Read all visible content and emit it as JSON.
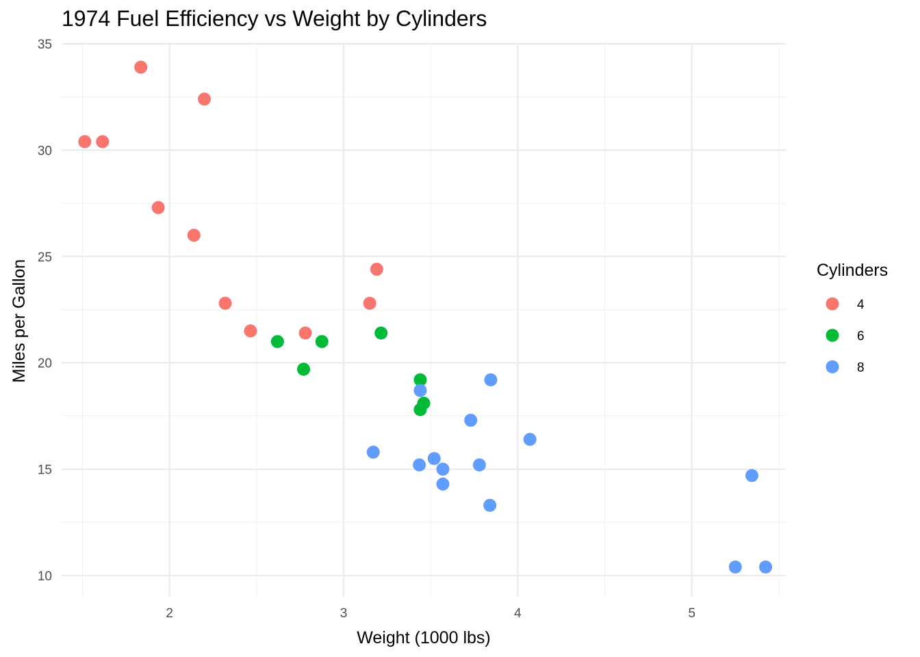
{
  "chart_data": {
    "type": "scatter",
    "title": "1974 Fuel Efficiency vs Weight by Cylinders",
    "xlabel": "Weight (1000 lbs)",
    "ylabel": "Miles per Gallon",
    "xlim": [
      1.38,
      5.54
    ],
    "ylim": [
      9.0,
      35.0
    ],
    "x_ticks": [
      2,
      3,
      4,
      5
    ],
    "x_tick_labels": [
      "2",
      "3",
      "4",
      "5"
    ],
    "y_ticks": [
      10,
      15,
      20,
      25,
      30,
      35
    ],
    "y_tick_labels": [
      "10",
      "15",
      "20",
      "25",
      "30",
      "35"
    ],
    "grid": true,
    "legend": {
      "title": "Cylinders",
      "placement": "right",
      "entries": [
        {
          "label": "4",
          "color": "#F8766D"
        },
        {
          "label": "6",
          "color": "#00BA38"
        },
        {
          "label": "8",
          "color": "#619CFF"
        }
      ]
    },
    "series": [
      {
        "name": "4",
        "color": "#F8766D",
        "points": [
          {
            "x": 1.513,
            "y": 30.4
          },
          {
            "x": 1.615,
            "y": 30.4
          },
          {
            "x": 1.835,
            "y": 33.9
          },
          {
            "x": 1.935,
            "y": 27.3
          },
          {
            "x": 2.14,
            "y": 26.0
          },
          {
            "x": 2.2,
            "y": 32.4
          },
          {
            "x": 2.32,
            "y": 22.8
          },
          {
            "x": 2.465,
            "y": 21.5
          },
          {
            "x": 2.78,
            "y": 21.4
          },
          {
            "x": 3.15,
            "y": 22.8
          },
          {
            "x": 3.19,
            "y": 24.4
          }
        ]
      },
      {
        "name": "6",
        "color": "#00BA38",
        "points": [
          {
            "x": 2.62,
            "y": 21.0
          },
          {
            "x": 2.77,
            "y": 19.7
          },
          {
            "x": 2.875,
            "y": 21.0
          },
          {
            "x": 3.215,
            "y": 21.4
          },
          {
            "x": 3.44,
            "y": 19.2
          },
          {
            "x": 3.44,
            "y": 17.8
          },
          {
            "x": 3.46,
            "y": 18.1
          }
        ]
      },
      {
        "name": "8",
        "color": "#619CFF",
        "points": [
          {
            "x": 3.17,
            "y": 15.8
          },
          {
            "x": 3.435,
            "y": 15.2
          },
          {
            "x": 3.44,
            "y": 18.7
          },
          {
            "x": 3.52,
            "y": 15.5
          },
          {
            "x": 3.57,
            "y": 15.0
          },
          {
            "x": 3.57,
            "y": 14.3
          },
          {
            "x": 3.73,
            "y": 17.3
          },
          {
            "x": 3.78,
            "y": 15.2
          },
          {
            "x": 3.84,
            "y": 13.3
          },
          {
            "x": 3.845,
            "y": 19.2
          },
          {
            "x": 4.07,
            "y": 16.4
          },
          {
            "x": 5.25,
            "y": 10.4
          },
          {
            "x": 5.345,
            "y": 14.7
          },
          {
            "x": 5.424,
            "y": 10.4
          }
        ]
      }
    ]
  }
}
